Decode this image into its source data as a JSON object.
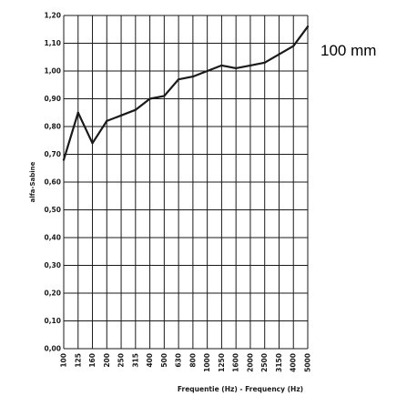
{
  "chart_data": {
    "type": "line",
    "ylabel": "alfa-Sabine",
    "xlabel": "Frequentie (Hz) - Frequency (Hz)",
    "annotation": "100 mm",
    "x": [
      "100",
      "125",
      "160",
      "200",
      "250",
      "315",
      "400",
      "500",
      "630",
      "800",
      "1000",
      "1250",
      "1600",
      "2000",
      "2500",
      "3150",
      "4000",
      "5000"
    ],
    "y_ticks": [
      "0,00",
      "0,10",
      "0,20",
      "0,30",
      "0,40",
      "0,50",
      "0,60",
      "0,70",
      "0,80",
      "0,90",
      "1,00",
      "1,10",
      "1,20"
    ],
    "ylim": [
      0,
      1.2
    ],
    "grid": true,
    "series": [
      {
        "values": [
          0.68,
          0.85,
          0.74,
          0.82,
          0.84,
          0.86,
          0.9,
          0.91,
          0.97,
          0.98,
          1.0,
          1.02,
          1.01,
          1.02,
          1.03,
          1.06,
          1.09,
          1.16
        ]
      }
    ],
    "colors": {
      "line": "#1a1a1a",
      "grid": "#1a1a1a"
    }
  }
}
